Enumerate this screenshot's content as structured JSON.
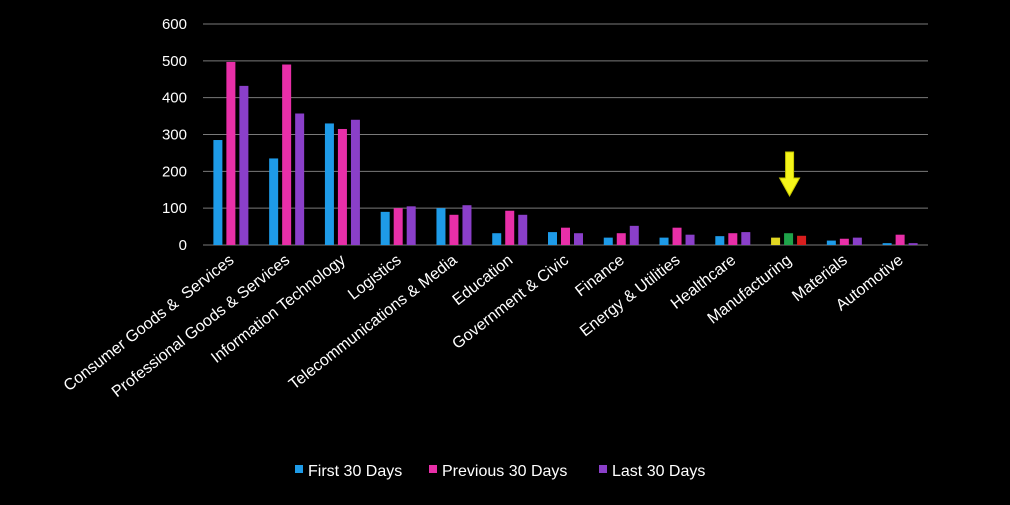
{
  "colors": {
    "background": "#000000",
    "text": "#ffffff",
    "grid": "#7a7a7a",
    "first_30": "#1e9be8",
    "previous_30": "#e82fa8",
    "last_30": "#8a3fc9",
    "highlight_first": "#e0d622",
    "highlight_previous": "#1fa34a",
    "highlight_last": "#d81e1e",
    "arrow": "#f5f51a"
  },
  "chart_data": {
    "type": "bar",
    "title": "",
    "xlabel": "",
    "ylabel": "",
    "ylim": [
      0,
      600
    ],
    "yticks": [
      "0",
      "100",
      "200",
      "300",
      "400",
      "500",
      "600"
    ],
    "grid": true,
    "legend_position": "bottom",
    "categories": [
      "Consumer Goods &  Services",
      "Professional Goods & Services",
      "Information Technology",
      "Logistics",
      "Telecommunications & Media",
      "Education",
      "Government & Civic",
      "Finance",
      "Energy & Utilities",
      "Healthcare",
      "Manufacturing",
      "Materials",
      "Automotive"
    ],
    "series": [
      {
        "name": "First 30 Days",
        "values": [
          285,
          235,
          330,
          90,
          100,
          32,
          35,
          20,
          20,
          24,
          20,
          12,
          5
        ]
      },
      {
        "name": "Previous 30 Days",
        "values": [
          497,
          490,
          315,
          100,
          82,
          93,
          47,
          32,
          47,
          32,
          32,
          17,
          28
        ]
      },
      {
        "name": "Last 30 Days",
        "values": [
          432,
          357,
          340,
          105,
          108,
          82,
          32,
          52,
          28,
          35,
          25,
          20,
          5
        ]
      }
    ],
    "highlighted_category": "Manufacturing"
  }
}
